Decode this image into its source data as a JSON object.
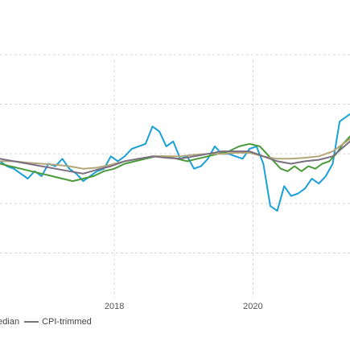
{
  "chart_data": {
    "type": "line",
    "title": "",
    "xlabel": "",
    "ylabel": "",
    "xlim": [
      2016.35,
      2021.4
    ],
    "ylim": [
      -1.9,
      4.1
    ],
    "x_ticks": [
      {
        "value": 2018,
        "label": "2018"
      },
      {
        "value": 2020,
        "label": "2020"
      }
    ],
    "y_gridlines": [
      -1,
      0,
      1,
      2,
      3
    ],
    "grid": true,
    "legend": {
      "placement": "bottom-left",
      "entries": [
        {
          "label": "median",
          "color": "#8a7d8a"
        },
        {
          "label": "CPI-trimmed",
          "color": "#777777"
        }
      ]
    },
    "series": [
      {
        "color": "#1a9fd9",
        "values": [
          [
            2016.35,
            0.85
          ],
          [
            2016.45,
            0.75
          ],
          [
            2016.55,
            0.7
          ],
          [
            2016.65,
            0.6
          ],
          [
            2016.75,
            0.5
          ],
          [
            2016.85,
            0.65
          ],
          [
            2016.95,
            0.55
          ],
          [
            2017.05,
            0.8
          ],
          [
            2017.15,
            0.75
          ],
          [
            2017.25,
            0.9
          ],
          [
            2017.35,
            0.7
          ],
          [
            2017.45,
            0.6
          ],
          [
            2017.55,
            0.45
          ],
          [
            2017.65,
            0.55
          ],
          [
            2017.75,
            0.65
          ],
          [
            2017.85,
            0.7
          ],
          [
            2017.95,
            0.95
          ],
          [
            2018.05,
            0.85
          ],
          [
            2018.15,
            0.95
          ],
          [
            2018.25,
            1.1
          ],
          [
            2018.35,
            1.15
          ],
          [
            2018.45,
            1.2
          ],
          [
            2018.55,
            1.55
          ],
          [
            2018.65,
            1.45
          ],
          [
            2018.75,
            1.15
          ],
          [
            2018.85,
            1.25
          ],
          [
            2018.95,
            0.9
          ],
          [
            2019.05,
            0.95
          ],
          [
            2019.15,
            0.7
          ],
          [
            2019.25,
            0.75
          ],
          [
            2019.35,
            0.9
          ],
          [
            2019.45,
            1.15
          ],
          [
            2019.55,
            1.0
          ],
          [
            2019.65,
            1.0
          ],
          [
            2019.75,
            0.95
          ],
          [
            2019.85,
            0.9
          ],
          [
            2019.95,
            1.1
          ],
          [
            2020.05,
            1.15
          ],
          [
            2020.15,
            0.8
          ],
          [
            2020.25,
            -0.05
          ],
          [
            2020.35,
            -0.15
          ],
          [
            2020.45,
            0.35
          ],
          [
            2020.55,
            0.15
          ],
          [
            2020.65,
            0.2
          ],
          [
            2020.75,
            0.3
          ],
          [
            2020.85,
            0.5
          ],
          [
            2020.95,
            0.4
          ],
          [
            2021.05,
            0.55
          ],
          [
            2021.15,
            0.8
          ],
          [
            2021.25,
            1.65
          ],
          [
            2021.4,
            1.8
          ]
        ]
      },
      {
        "color": "#4a9a3a",
        "values": [
          [
            2016.35,
            0.8
          ],
          [
            2016.5,
            0.75
          ],
          [
            2016.65,
            0.7
          ],
          [
            2016.8,
            0.65
          ],
          [
            2016.95,
            0.6
          ],
          [
            2017.1,
            0.55
          ],
          [
            2017.25,
            0.5
          ],
          [
            2017.4,
            0.45
          ],
          [
            2017.55,
            0.5
          ],
          [
            2017.7,
            0.55
          ],
          [
            2017.85,
            0.65
          ],
          [
            2018.0,
            0.7
          ],
          [
            2018.15,
            0.8
          ],
          [
            2018.3,
            0.85
          ],
          [
            2018.45,
            0.9
          ],
          [
            2018.6,
            0.95
          ],
          [
            2018.75,
            0.95
          ],
          [
            2018.9,
            0.9
          ],
          [
            2019.05,
            0.85
          ],
          [
            2019.2,
            0.9
          ],
          [
            2019.35,
            0.95
          ],
          [
            2019.5,
            1.0
          ],
          [
            2019.65,
            1.05
          ],
          [
            2019.8,
            1.15
          ],
          [
            2019.95,
            1.2
          ],
          [
            2020.1,
            1.15
          ],
          [
            2020.2,
            1.0
          ],
          [
            2020.3,
            0.85
          ],
          [
            2020.4,
            0.7
          ],
          [
            2020.5,
            0.65
          ],
          [
            2020.6,
            0.75
          ],
          [
            2020.7,
            0.65
          ],
          [
            2020.8,
            0.75
          ],
          [
            2020.9,
            0.7
          ],
          [
            2021.0,
            0.8
          ],
          [
            2021.1,
            0.85
          ],
          [
            2021.2,
            1.0
          ],
          [
            2021.3,
            1.2
          ],
          [
            2021.4,
            1.35
          ]
        ]
      },
      {
        "color": "#b3a678",
        "values": [
          [
            2016.35,
            0.85
          ],
          [
            2016.55,
            0.85
          ],
          [
            2016.75,
            0.82
          ],
          [
            2016.95,
            0.8
          ],
          [
            2017.15,
            0.78
          ],
          [
            2017.35,
            0.75
          ],
          [
            2017.55,
            0.7
          ],
          [
            2017.75,
            0.72
          ],
          [
            2017.95,
            0.78
          ],
          [
            2018.15,
            0.85
          ],
          [
            2018.35,
            0.9
          ],
          [
            2018.55,
            0.95
          ],
          [
            2018.75,
            0.95
          ],
          [
            2018.95,
            0.95
          ],
          [
            2019.15,
            0.98
          ],
          [
            2019.35,
            1.0
          ],
          [
            2019.55,
            1.0
          ],
          [
            2019.75,
            1.02
          ],
          [
            2019.95,
            1.02
          ],
          [
            2020.15,
            0.95
          ],
          [
            2020.35,
            0.9
          ],
          [
            2020.55,
            0.9
          ],
          [
            2020.75,
            0.92
          ],
          [
            2020.95,
            0.95
          ],
          [
            2021.15,
            1.05
          ],
          [
            2021.4,
            1.3
          ]
        ]
      },
      {
        "color": "#7a6f80",
        "values": [
          [
            2016.35,
            0.9
          ],
          [
            2016.55,
            0.85
          ],
          [
            2016.75,
            0.8
          ],
          [
            2016.95,
            0.75
          ],
          [
            2017.15,
            0.7
          ],
          [
            2017.35,
            0.65
          ],
          [
            2017.55,
            0.6
          ],
          [
            2017.75,
            0.68
          ],
          [
            2017.95,
            0.75
          ],
          [
            2018.15,
            0.85
          ],
          [
            2018.35,
            0.9
          ],
          [
            2018.55,
            0.95
          ],
          [
            2018.75,
            0.92
          ],
          [
            2018.95,
            0.9
          ],
          [
            2019.15,
            0.95
          ],
          [
            2019.35,
            1.0
          ],
          [
            2019.55,
            1.05
          ],
          [
            2019.75,
            1.05
          ],
          [
            2019.95,
            1.05
          ],
          [
            2020.15,
            0.95
          ],
          [
            2020.35,
            0.85
          ],
          [
            2020.55,
            0.8
          ],
          [
            2020.75,
            0.85
          ],
          [
            2020.95,
            0.88
          ],
          [
            2021.15,
            0.95
          ],
          [
            2021.4,
            1.25
          ]
        ]
      }
    ]
  }
}
